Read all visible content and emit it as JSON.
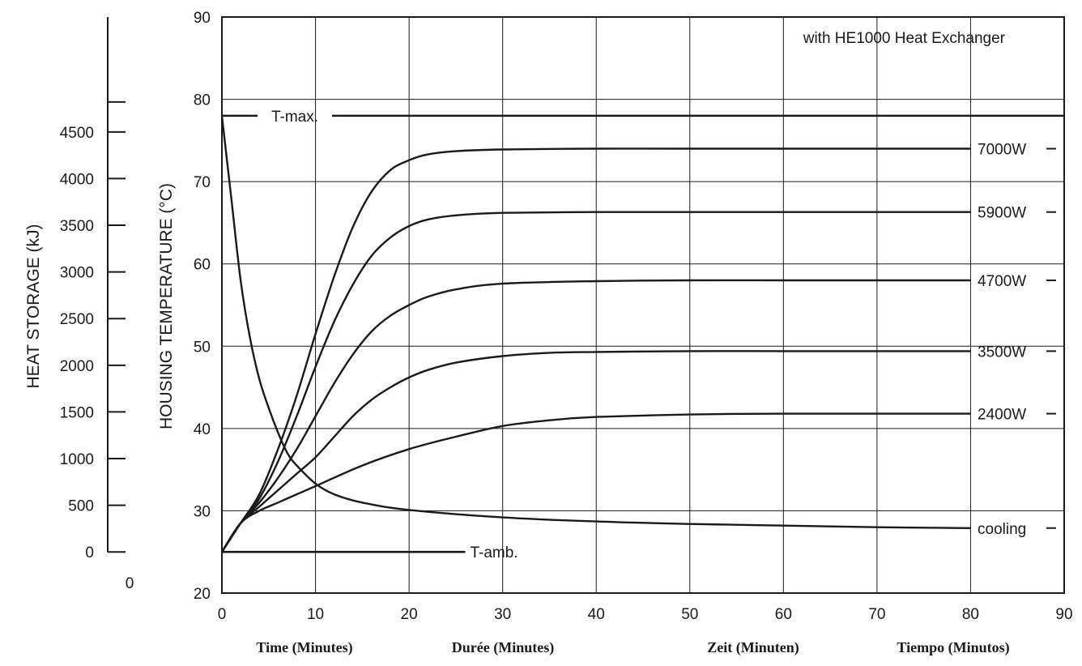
{
  "chart_data": {
    "type": "line",
    "annotation": "with HE1000 Heat Exchanger",
    "xlim": [
      0,
      90
    ],
    "ylim": [
      20,
      90
    ],
    "x_ticks": [
      0,
      10,
      20,
      30,
      40,
      50,
      60,
      70,
      80,
      90
    ],
    "y_ticks": [
      20,
      30,
      40,
      50,
      60,
      70,
      80,
      90
    ],
    "ylabel": "HOUSING TEMPERATURE (°C)",
    "xlabels": [
      "Time  (Minutes)",
      "Durée  (Minutes)",
      "Zeit  (Minuten)",
      "Tiempo  (Minutos)"
    ],
    "secondary_axis": {
      "label": "HEAT STORAGE (kJ)",
      "ticks": [
        "0",
        "500",
        "1000",
        "1500",
        "2000",
        "2500",
        "3000",
        "3500",
        "4000",
        "4500"
      ],
      "extra_label": "0"
    },
    "reference_lines": [
      {
        "name": "T-max.",
        "y": 78
      },
      {
        "name": "T-amb.",
        "y": 25,
        "x_end": 26
      }
    ],
    "grid": true,
    "series": [
      {
        "name": "7000W",
        "x": [
          0,
          2,
          4,
          6,
          8,
          10,
          12,
          14,
          16,
          18,
          20,
          22,
          25,
          30,
          40,
          50,
          60,
          70,
          80
        ],
        "y": [
          25,
          28.5,
          32,
          37.5,
          44,
          51.5,
          58.5,
          64.5,
          68.8,
          71.4,
          72.6,
          73.3,
          73.7,
          73.9,
          74,
          74,
          74,
          74,
          74
        ]
      },
      {
        "name": "5900W",
        "x": [
          0,
          2,
          4,
          6,
          8,
          10,
          12,
          14,
          16,
          18,
          20,
          22,
          25,
          30,
          40,
          50,
          60,
          70,
          80
        ],
        "y": [
          25,
          28.5,
          31.5,
          36,
          41.5,
          47.5,
          53,
          57.5,
          61,
          63.2,
          64.6,
          65.4,
          65.9,
          66.2,
          66.3,
          66.3,
          66.3,
          66.3,
          66.3
        ]
      },
      {
        "name": "4700W",
        "x": [
          0,
          2,
          4,
          6,
          8,
          10,
          12,
          14,
          16,
          18,
          20,
          22,
          25,
          30,
          40,
          50,
          60,
          70,
          80
        ],
        "y": [
          25,
          28.5,
          31,
          34,
          37.5,
          41.5,
          45.5,
          49,
          51.8,
          53.7,
          55,
          56,
          56.9,
          57.6,
          57.9,
          58,
          58,
          58,
          58
        ]
      },
      {
        "name": "3500W",
        "x": [
          0,
          2,
          4,
          6,
          8,
          10,
          12,
          14,
          16,
          18,
          20,
          22,
          25,
          30,
          35,
          40,
          50,
          60,
          70,
          80
        ],
        "y": [
          25,
          28.5,
          30.5,
          32.5,
          34.5,
          36.5,
          39,
          41.5,
          43.5,
          45,
          46.2,
          47.1,
          48,
          48.8,
          49.2,
          49.3,
          49.4,
          49.4,
          49.4,
          49.4
        ]
      },
      {
        "name": "2400W",
        "x": [
          0,
          2,
          4,
          6,
          8,
          10,
          15,
          20,
          25,
          30,
          35,
          40,
          50,
          60,
          70,
          80
        ],
        "y": [
          25,
          28.5,
          30,
          31,
          32,
          33,
          35.5,
          37.5,
          39,
          40.3,
          41,
          41.4,
          41.7,
          41.8,
          41.8,
          41.8
        ]
      },
      {
        "name": "cooling",
        "x": [
          0,
          1,
          2,
          3,
          4,
          5,
          6,
          7,
          8,
          10,
          12,
          15,
          20,
          30,
          40,
          50,
          60,
          70,
          80
        ],
        "y": [
          78,
          68,
          58,
          51,
          46,
          42.5,
          39.5,
          37,
          35.5,
          33.3,
          32,
          31,
          30.1,
          29.2,
          28.7,
          28.4,
          28.2,
          28,
          27.9
        ]
      }
    ]
  }
}
